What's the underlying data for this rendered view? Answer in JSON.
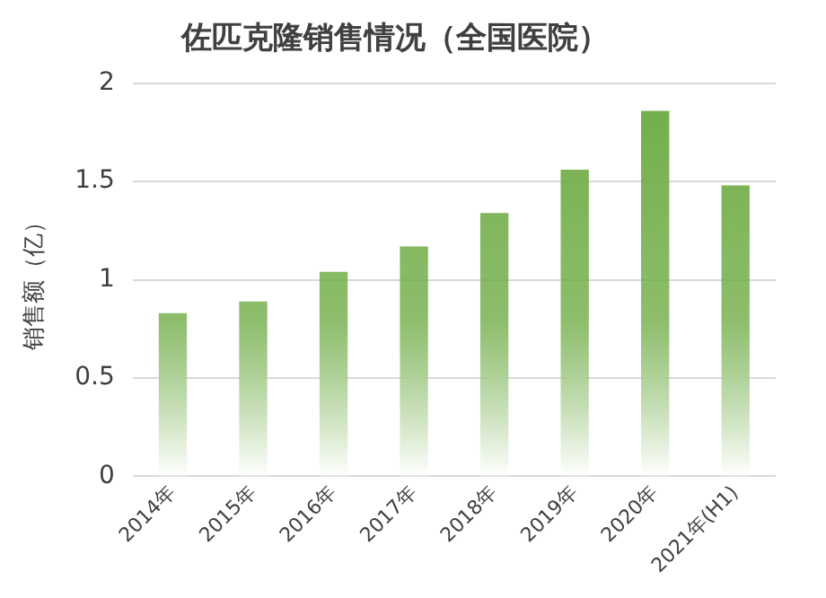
{
  "chart_data": {
    "type": "bar",
    "title": "佐匹克隆销售情况（全国医院）",
    "ylabel": "销售额（亿）",
    "categories": [
      "2014年",
      "2015年",
      "2016年",
      "2017年",
      "2018年",
      "2019年",
      "2020年",
      "2021年(H1)"
    ],
    "values": [
      0.83,
      0.89,
      1.04,
      1.17,
      1.34,
      1.56,
      1.86,
      1.48
    ],
    "color": "#70ad47",
    "ylim": [
      0,
      2
    ],
    "yticks": [
      0,
      0.5,
      1,
      1.5,
      2
    ],
    "grid": "y"
  }
}
